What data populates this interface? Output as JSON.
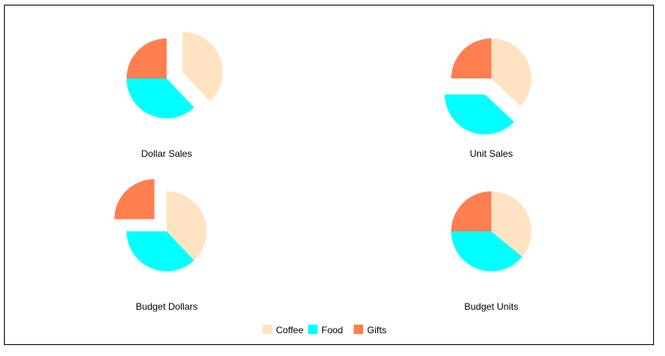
{
  "chart_data": {
    "type": "pie",
    "legend": {
      "placement": "bottom-center",
      "entries": [
        "Coffee",
        "Food",
        "Gifts"
      ]
    },
    "colors": {
      "Coffee": "#ffe4c4",
      "Food": "#00ffff",
      "Gifts": "#ff7f50"
    },
    "pies": [
      {
        "title": "Dollar Sales",
        "categories": [
          "Coffee",
          "Food",
          "Gifts"
        ],
        "values": [
          38,
          37,
          25
        ],
        "exploded": "Coffee"
      },
      {
        "title": "Unit Sales",
        "categories": [
          "Coffee",
          "Food",
          "Gifts"
        ],
        "values": [
          37,
          38,
          25
        ],
        "exploded": "Food"
      },
      {
        "title": "Budget Dollars",
        "categories": [
          "Coffee",
          "Food",
          "Gifts"
        ],
        "values": [
          38,
          37,
          25
        ],
        "exploded": "Gifts"
      },
      {
        "title": "Budget Units",
        "categories": [
          "Coffee",
          "Food",
          "Gifts"
        ],
        "values": [
          36,
          39,
          25
        ],
        "exploded": ""
      }
    ]
  }
}
